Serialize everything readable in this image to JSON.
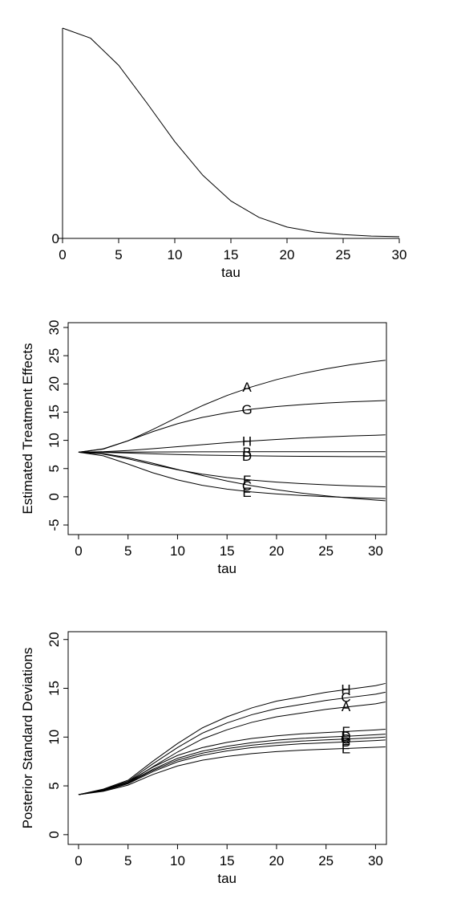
{
  "chart_data": [
    {
      "type": "line",
      "xlabel": "tau",
      "frame": false,
      "x": [
        0,
        2.5,
        5,
        7.5,
        10,
        12.5,
        15,
        17.5,
        20,
        22.5,
        25,
        27.5,
        30
      ],
      "values": [
        1,
        0.952,
        0.823,
        0.645,
        0.46,
        0.3,
        0.178,
        0.1,
        0.054,
        0.03,
        0.018,
        0.011,
        0.008
      ],
      "color": "#000000",
      "xlim": [
        0,
        30
      ],
      "ylim": [
        0,
        1
      ],
      "xticks": [
        0,
        5,
        10,
        15,
        20,
        25,
        30
      ],
      "yticks": [
        0
      ]
    },
    {
      "type": "line",
      "xlabel": "tau",
      "ylabel": "Estimated Treatment Effects",
      "frame": true,
      "x": [
        0,
        2.5,
        5,
        7.5,
        10,
        12.5,
        15,
        17.5,
        20,
        22.5,
        25,
        27.5,
        30,
        31
      ],
      "series": [
        {
          "name": "A",
          "color": "#000000",
          "values": [
            7.9,
            8.44,
            9.91,
            11.92,
            14.09,
            16.14,
            17.95,
            19.48,
            20.76,
            21.81,
            22.67,
            23.4,
            23.98,
            24.18
          ]
        },
        {
          "name": "B",
          "color": "#000000",
          "values": [
            7.9,
            7.91,
            7.92,
            7.94,
            7.95,
            7.96,
            7.97,
            7.98,
            7.98,
            7.98,
            7.99,
            7.99,
            7.99,
            7.99
          ]
        },
        {
          "name": "C",
          "color": "#000000",
          "values": [
            7.9,
            7.64,
            6.93,
            5.94,
            4.84,
            3.77,
            2.8,
            1.96,
            1.25,
            0.66,
            0.17,
            -0.24,
            -0.59,
            -0.71
          ]
        },
        {
          "name": "D",
          "color": "#000000",
          "values": [
            7.9,
            7.86,
            7.75,
            7.61,
            7.49,
            7.39,
            7.32,
            7.25,
            7.21,
            7.17,
            7.15,
            7.12,
            7.11,
            7.1
          ]
        },
        {
          "name": "E",
          "color": "#000000",
          "values": [
            7.9,
            7.26,
            5.8,
            4.25,
            2.99,
            2.03,
            1.36,
            0.86,
            0.5,
            0.23,
            0.02,
            -0.14,
            -0.26,
            -0.31
          ]
        },
        {
          "name": "F",
          "color": "#000000",
          "values": [
            7.9,
            7.56,
            6.72,
            5.71,
            4.78,
            4.01,
            3.42,
            2.95,
            2.6,
            2.33,
            2.12,
            1.95,
            1.82,
            1.77
          ]
        },
        {
          "name": "G",
          "color": "#000000",
          "values": [
            7.9,
            8.5,
            9.92,
            11.54,
            12.95,
            14.06,
            14.89,
            15.52,
            15.98,
            16.33,
            16.61,
            16.82,
            16.99,
            17.05
          ]
        },
        {
          "name": "H",
          "color": "#000000",
          "values": [
            7.9,
            7.98,
            8.2,
            8.51,
            8.87,
            9.23,
            9.58,
            9.89,
            10.16,
            10.4,
            10.6,
            10.77,
            10.91,
            10.97
          ]
        }
      ],
      "xlim": [
        -1.05,
        31.1
      ],
      "ylim": [
        -6.7,
        30.85
      ],
      "xticks": [
        0,
        5,
        10,
        15,
        20,
        25,
        30
      ],
      "yticks": [
        -5,
        0,
        5,
        10,
        15,
        20,
        25,
        30
      ]
    },
    {
      "type": "line",
      "xlabel": "tau",
      "ylabel": "Posterior Standard Deviations",
      "frame": true,
      "x": [
        0,
        2.5,
        5,
        7.5,
        10,
        12.5,
        15,
        17.5,
        20,
        22.5,
        25,
        27.5,
        30,
        31
      ],
      "series": [
        {
          "name": "A",
          "color": "#000000",
          "values": [
            4.1,
            4.58,
            5.34,
            6.95,
            8.47,
            9.8,
            10.75,
            11.51,
            12.08,
            12.46,
            12.84,
            13.13,
            13.41,
            13.6
          ]
        },
        {
          "name": "B",
          "color": "#000000",
          "values": [
            4.1,
            4.49,
            5.22,
            6.45,
            7.46,
            8.13,
            8.58,
            8.92,
            9.14,
            9.31,
            9.42,
            9.53,
            9.64,
            9.7
          ]
        },
        {
          "name": "C",
          "color": "#000000",
          "values": [
            4.1,
            4.63,
            5.47,
            7.25,
            8.93,
            10.4,
            11.45,
            12.29,
            12.92,
            13.34,
            13.76,
            14.08,
            14.39,
            14.6
          ]
        },
        {
          "name": "D",
          "color": "#000000",
          "values": [
            4.1,
            4.53,
            5.34,
            6.7,
            7.82,
            8.56,
            9.06,
            9.43,
            9.68,
            9.87,
            9.99,
            10.11,
            10.24,
            10.3
          ]
        },
        {
          "name": "E",
          "color": "#000000",
          "values": [
            4.1,
            4.44,
            5.08,
            6.16,
            7.04,
            7.63,
            8.02,
            8.31,
            8.51,
            8.66,
            8.76,
            8.85,
            8.95,
            9.0
          ]
        },
        {
          "name": "F",
          "color": "#000000",
          "values": [
            4.1,
            4.57,
            5.44,
            6.91,
            8.12,
            8.92,
            9.46,
            9.86,
            10.13,
            10.33,
            10.47,
            10.6,
            10.73,
            10.8
          ]
        },
        {
          "name": "G",
          "color": "#000000",
          "values": [
            4.1,
            4.51,
            5.28,
            6.58,
            7.64,
            8.35,
            8.82,
            9.17,
            9.41,
            9.59,
            9.71,
            9.82,
            9.94,
            10.0
          ]
        },
        {
          "name": "H",
          "color": "#000000",
          "values": [
            4.1,
            4.67,
            5.58,
            7.52,
            9.34,
            10.94,
            12.08,
            12.99,
            13.68,
            14.13,
            14.59,
            14.93,
            15.27,
            15.5
          ]
        }
      ],
      "xlim": [
        -1.05,
        31.1
      ],
      "ylim": [
        -1,
        20.8
      ],
      "xticks": [
        0,
        5,
        10,
        15,
        20,
        25,
        30
      ],
      "yticks": [
        0,
        5,
        10,
        15,
        20
      ]
    }
  ]
}
